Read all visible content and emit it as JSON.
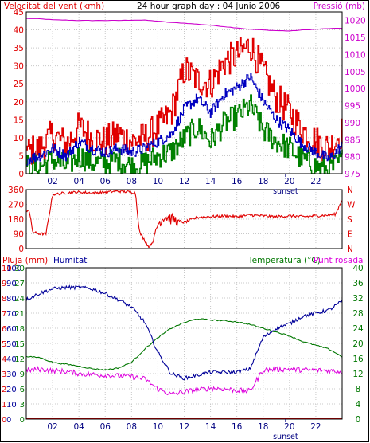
{
  "title": "24 hour graph day : 04 Junio 2006",
  "colors": {
    "wind": "#e00000",
    "wind_green": "#008000",
    "wind_blue": "#0000c0",
    "pressure": "#cc00cc",
    "direction": "#e00000",
    "humidity": "#000099",
    "temperature": "#007700",
    "dewpoint": "#dd00dd",
    "rain": "#dd0000",
    "grid": "#c8c8c8",
    "axis_black": "#000000"
  },
  "panel1": {
    "left_label": "Velocitat del vent (kmh)",
    "right_label": "Pressió (mb)",
    "left_ticks": [
      "0",
      "5",
      "10",
      "15",
      "20",
      "25",
      "30",
      "35",
      "40",
      "45"
    ],
    "right_ticks": [
      "975",
      "980",
      "985",
      "990",
      "995",
      "1000",
      "1005",
      "1010",
      "1015",
      "1020"
    ],
    "x_ticks": [
      "02",
      "04",
      "06",
      "08",
      "10",
      "12",
      "14",
      "16",
      "18",
      "20",
      "22"
    ],
    "sunset_label": "sunset"
  },
  "panel2": {
    "left_ticks": [
      "0",
      "90",
      "180",
      "270",
      "360"
    ],
    "compass": [
      "N",
      "W",
      "S",
      "E",
      "N"
    ]
  },
  "panel3": {
    "rain_label": "Pluja (mm)",
    "hum_label": "Humitat",
    "temp_label": "Temperatura (°C)",
    "dew_label": "Punt rosada",
    "rain_ticks": [
      "0",
      "1",
      "2",
      "3",
      "4",
      "5",
      "6",
      "7",
      "8",
      "9",
      "10"
    ],
    "hum_ticks": [
      "0",
      "10",
      "20",
      "30",
      "40",
      "50",
      "60",
      "70",
      "80",
      "90",
      "100"
    ],
    "left_temp_ticks": [
      "0",
      "3",
      "6",
      "9",
      "12",
      "15",
      "18",
      "21",
      "24",
      "27",
      "30"
    ],
    "right_ticks": [
      "0",
      "4",
      "8",
      "12",
      "16",
      "20",
      "24",
      "28",
      "32",
      "36",
      "40"
    ],
    "x_ticks": [
      "02",
      "04",
      "06",
      "08",
      "10",
      "12",
      "14",
      "16",
      "18",
      "20",
      "22"
    ],
    "sunset_label": "sunset"
  },
  "chart_data": [
    {
      "type": "line",
      "title": "24 hour graph day : 04 Junio 2006",
      "x_unit": "hour",
      "xlim": [
        0,
        24
      ],
      "left_axis": {
        "label": "Velocitat del vent (kmh)",
        "ylim": [
          0,
          45
        ]
      },
      "right_axis": {
        "label": "Pressió (mb)",
        "ylim": [
          975,
          1022.5
        ]
      },
      "sunset_hour": 19.7,
      "series": [
        {
          "name": "Velocitat del vent (kmh)",
          "axis": "left",
          "color": "#e00000",
          "x": [
            0,
            1,
            2,
            3,
            4,
            5,
            6,
            7,
            8,
            9,
            10,
            11,
            12,
            13,
            14,
            15,
            16,
            17,
            18,
            19,
            20,
            21,
            22,
            23,
            24
          ],
          "y": [
            6,
            7,
            11,
            8,
            13,
            10,
            9,
            11,
            9,
            10,
            13,
            17,
            29,
            26,
            25,
            31,
            33,
            36,
            28,
            21,
            17,
            12,
            9,
            7,
            12
          ]
        },
        {
          "name": "Velocitat del vent (kmh) mitjana",
          "axis": "left",
          "color": "#0000c0",
          "x": [
            0,
            1,
            2,
            3,
            4,
            5,
            6,
            7,
            8,
            9,
            10,
            11,
            12,
            13,
            14,
            15,
            16,
            17,
            18,
            19,
            20,
            21,
            22,
            23,
            24
          ],
          "y": [
            4,
            5,
            7,
            5,
            9,
            7,
            6,
            7,
            6,
            7,
            9,
            11,
            18,
            21,
            17,
            22,
            24,
            27,
            20,
            15,
            12,
            8,
            6,
            4,
            8
          ]
        },
        {
          "name": "Velocitat del vent (kmh) mínima",
          "axis": "left",
          "color": "#008000",
          "x": [
            0,
            1,
            2,
            3,
            4,
            5,
            6,
            7,
            8,
            9,
            10,
            11,
            12,
            13,
            14,
            15,
            16,
            17,
            18,
            19,
            20,
            21,
            22,
            23,
            24
          ],
          "y": [
            2,
            2,
            4,
            2,
            5,
            3,
            3,
            4,
            2,
            3,
            5,
            6,
            10,
            13,
            9,
            14,
            16,
            19,
            12,
            9,
            7,
            4,
            2,
            1,
            4
          ]
        },
        {
          "name": "Pressió (mb)",
          "axis": "right",
          "color": "#cc00cc",
          "x": [
            0,
            1,
            2,
            3,
            4,
            5,
            6,
            7,
            8,
            9,
            10,
            11,
            12,
            13,
            14,
            15,
            16,
            17,
            18,
            19,
            20,
            21,
            22,
            23,
            24
          ],
          "y": [
            1020.6,
            1020.5,
            1020.2,
            1020.1,
            1020.0,
            1020.0,
            1020.0,
            1020.0,
            1020.1,
            1020.1,
            1019.8,
            1019.4,
            1019.2,
            1018.9,
            1018.6,
            1018.2,
            1017.8,
            1017.4,
            1017.2,
            1017.0,
            1016.9,
            1017.2,
            1017.4,
            1017.6,
            1017.7
          ]
        }
      ]
    },
    {
      "type": "line",
      "x_unit": "hour",
      "xlim": [
        0,
        24
      ],
      "ylim": [
        0,
        360
      ],
      "series": [
        {
          "name": "Direcció del vent (graus)",
          "color": "#e00000",
          "x": [
            0,
            0.2,
            0.5,
            1,
            1.5,
            2,
            3,
            4,
            5,
            6,
            7,
            8,
            8.3,
            8.6,
            9,
            9.3,
            9.6,
            10,
            10.5,
            11,
            12,
            13,
            14,
            15,
            16,
            17,
            18,
            19,
            20,
            21,
            22,
            23,
            23.5,
            24
          ],
          "y": [
            230,
            240,
            100,
            90,
            90,
            330,
            340,
            345,
            340,
            345,
            350,
            345,
            340,
            100,
            50,
            10,
            40,
            150,
            200,
            180,
            160,
            190,
            195,
            200,
            195,
            205,
            200,
            195,
            200,
            195,
            200,
            205,
            210,
            300
          ]
        }
      ]
    },
    {
      "type": "line",
      "x_unit": "hour",
      "xlim": [
        0,
        24
      ],
      "rain_axis": {
        "label": "Pluja (mm)",
        "ylim": [
          0,
          10
        ]
      },
      "humidity_axis": {
        "label": "Humitat",
        "ylim": [
          0,
          100
        ]
      },
      "temperature_axis": {
        "label": "Temperatura (°C)",
        "ylim": [
          0,
          40
        ]
      },
      "sunset_hour": 19.7,
      "series": [
        {
          "name": "Humitat",
          "axis": "humidity",
          "color": "#000099",
          "x": [
            0,
            1,
            2,
            3,
            4,
            5,
            6,
            7,
            8,
            9,
            10,
            11,
            12,
            13,
            14,
            15,
            16,
            17,
            18,
            19,
            20,
            21,
            22,
            23,
            24
          ],
          "y": [
            79,
            83,
            86,
            87,
            87,
            86,
            83,
            79,
            74,
            64,
            44,
            30,
            27,
            29,
            31,
            31,
            31,
            33,
            54,
            60,
            63,
            68,
            70,
            72,
            78
          ]
        },
        {
          "name": "Temperatura (°C)",
          "axis": "temperature",
          "color": "#007700",
          "x": [
            0,
            1,
            2,
            3,
            4,
            5,
            6,
            7,
            8,
            9,
            10,
            11,
            12,
            13,
            14,
            15,
            16,
            17,
            18,
            19,
            20,
            21,
            22,
            23,
            24
          ],
          "y": [
            16.5,
            16.3,
            15.0,
            14.5,
            14.0,
            13.3,
            13.0,
            13.5,
            15.0,
            18.5,
            21.5,
            24.0,
            25.5,
            26.5,
            26.2,
            26.0,
            25.7,
            25.0,
            24.0,
            23.0,
            22.0,
            20.5,
            19.5,
            18.5,
            16.5
          ]
        },
        {
          "name": "Punt rosada",
          "axis": "temperature",
          "color": "#dd00dd",
          "x": [
            0,
            1,
            2,
            3,
            4,
            5,
            6,
            7,
            8,
            9,
            10,
            11,
            12,
            13,
            14,
            15,
            16,
            17,
            18,
            19,
            20,
            21,
            22,
            23,
            24
          ],
          "y": [
            12.8,
            13.2,
            12.8,
            12.6,
            12.0,
            11.8,
            11.6,
            11.4,
            11.2,
            10.6,
            8.0,
            6.5,
            7.2,
            7.7,
            8.2,
            8.0,
            7.6,
            7.4,
            13.0,
            13.1,
            13.2,
            13.0,
            12.9,
            12.8,
            12.5
          ]
        },
        {
          "name": "Pluja (mm)",
          "axis": "rain",
          "color": "#dd0000",
          "x": [
            0,
            24
          ],
          "y": [
            0,
            0
          ]
        }
      ]
    }
  ]
}
